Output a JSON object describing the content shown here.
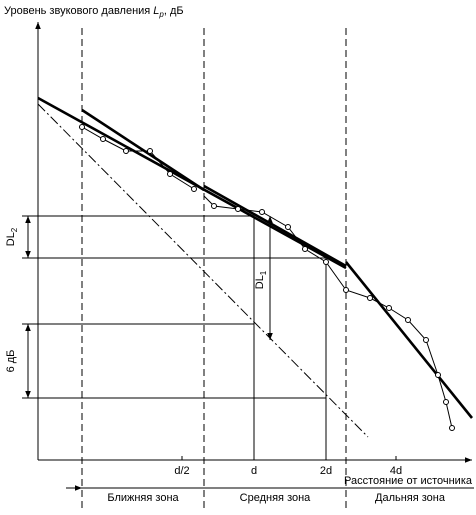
{
  "y_axis": {
    "label": "Уровень звукового давления",
    "symbol": "L",
    "subscript": "p",
    "unit": ", дБ"
  },
  "x_axis": {
    "label": "Расстояние от источника",
    "ticks": [
      "d/2",
      "d",
      "2d",
      "4d"
    ]
  },
  "dimensions": {
    "dl2": {
      "text": "DL",
      "subscript": "2"
    },
    "dl1": {
      "text": "DL",
      "subscript": "1"
    },
    "step": "6 дБ"
  },
  "zones": [
    "Ближняя зона",
    "Средняя зона",
    "Дальняя зона"
  ]
}
